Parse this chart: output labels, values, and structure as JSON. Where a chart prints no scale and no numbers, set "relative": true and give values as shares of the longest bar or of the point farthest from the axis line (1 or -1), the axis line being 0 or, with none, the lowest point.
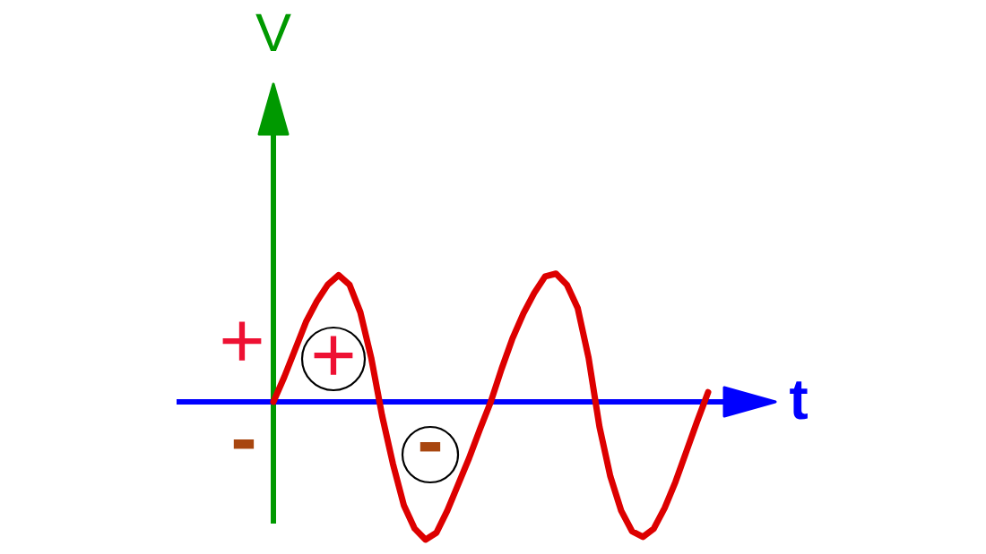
{
  "chart_data": {
    "type": "line",
    "xlabel": "t",
    "ylabel": "V",
    "relative": true,
    "categories": [
      null,
      null,
      null,
      null,
      null,
      null,
      null,
      null,
      null,
      null,
      null,
      null,
      null,
      null,
      null,
      null,
      null,
      null,
      null,
      null,
      null,
      null,
      null,
      null,
      null,
      null,
      null,
      null,
      null,
      null,
      null,
      null,
      null,
      null,
      null,
      null,
      null,
      null,
      null,
      null,
      null
    ],
    "series": [
      {
        "color": "#dd0000",
        "values": [
          0,
          0.18,
          0.38,
          0.58,
          0.73,
          0.85,
          0.92,
          0.85,
          0.65,
          0.32,
          -0.1,
          -0.45,
          -0.75,
          -0.92,
          -1,
          -0.95,
          -0.79,
          -0.6,
          -0.41,
          -0.2,
          0,
          0.24,
          0.46,
          0.64,
          0.79,
          0.91,
          0.93,
          0.85,
          0.68,
          0.32,
          -0.18,
          -0.54,
          -0.79,
          -0.94,
          -0.98,
          -0.92,
          -0.77,
          -0.58,
          -0.36,
          -0.14,
          0.07
        ]
      }
    ],
    "ref_lines": [
      {
        "axis": "y",
        "value": 0,
        "color": "#0000ff"
      }
    ],
    "annotations": [
      "+",
      "-",
      "+",
      "-"
    ]
  }
}
